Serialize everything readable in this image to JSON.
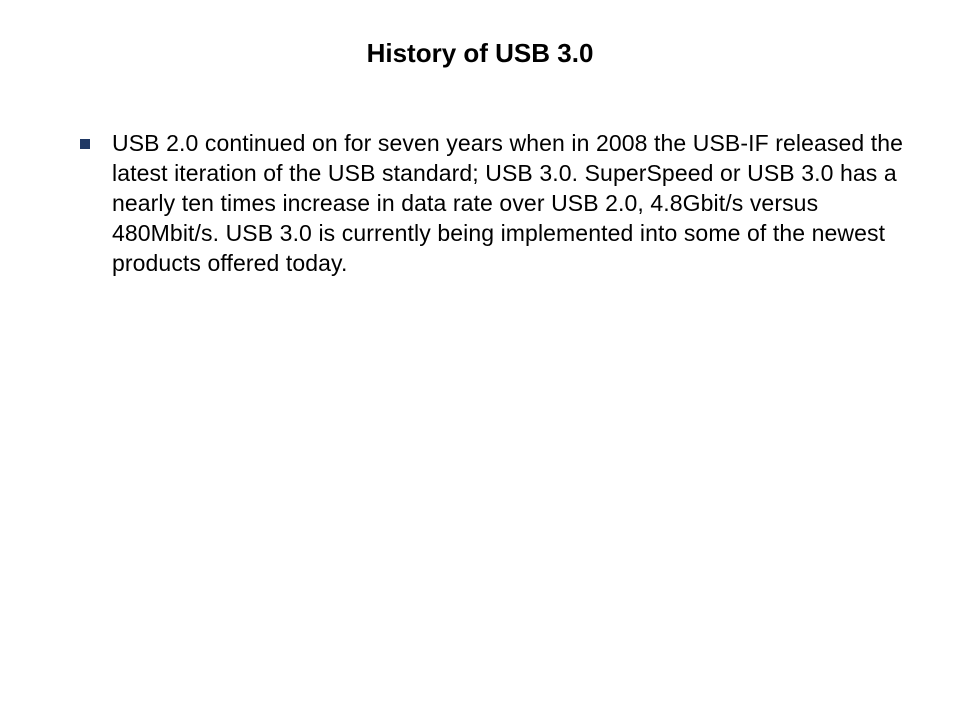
{
  "slide": {
    "title": "History of USB 3.0",
    "title_fontsize": 26,
    "title_fontweight": "bold",
    "title_color": "#000000",
    "background_color": "#ffffff",
    "bullets": [
      {
        "text": "USB 2.0 continued on for seven years when in 2008 the USB-IF released the latest iteration of the USB standard; USB 3.0. SuperSpeed or USB 3.0 has a nearly ten times increase in data rate over USB 2.0, 4.8Gbit/s versus 480Mbit/s. USB 3.0 is currently being implemented into some of the newest products offered today."
      }
    ],
    "bullet_marker_color": "#1f3864",
    "bullet_marker_size": 10,
    "body_fontsize": 23,
    "body_color": "#000000"
  }
}
